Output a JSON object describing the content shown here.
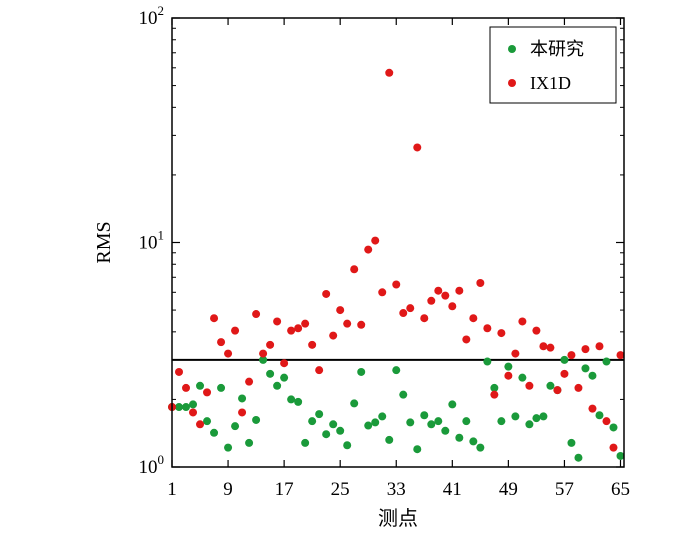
{
  "chart_data": {
    "type": "scatter",
    "xlabel": "测点",
    "ylabel": "RMS",
    "xlim": [
      1,
      65.5
    ],
    "ylim": [
      1,
      100
    ],
    "y_scale": "log",
    "x_ticks": [
      1,
      9,
      17,
      25,
      33,
      41,
      49,
      57,
      65
    ],
    "x_tick_labels": [
      "1",
      "9",
      "17",
      "25",
      "33",
      "41",
      "49",
      "57",
      "65"
    ],
    "y_ticks": [
      1,
      10,
      100
    ],
    "y_tick_labels": [
      {
        "base": "10",
        "exp": "0"
      },
      {
        "base": "10",
        "exp": "1"
      },
      {
        "base": "10",
        "exp": "2"
      }
    ],
    "legend_position": "top-right",
    "reference_line": {
      "y": 3.0,
      "color": "#000000"
    },
    "series": [
      {
        "name": "本研究",
        "color": "#1a9a3a",
        "x": [
          1,
          2,
          3,
          4,
          5,
          6,
          7,
          8,
          9,
          10,
          11,
          12,
          13,
          14,
          15,
          16,
          17,
          18,
          19,
          20,
          21,
          22,
          23,
          24,
          25,
          26,
          27,
          28,
          29,
          30,
          31,
          32,
          33,
          34,
          35,
          36,
          37,
          38,
          39,
          40,
          41,
          42,
          43,
          44,
          45,
          46,
          47,
          48,
          49,
          50,
          51,
          52,
          53,
          54,
          55,
          56,
          57,
          58,
          59,
          60,
          61,
          62,
          63,
          64,
          65
        ],
        "y": [
          1.85,
          1.85,
          1.85,
          1.9,
          2.3,
          1.6,
          1.42,
          2.25,
          1.22,
          1.52,
          2.02,
          1.28,
          1.62,
          3.0,
          2.6,
          2.3,
          2.5,
          2.0,
          1.95,
          1.28,
          1.6,
          1.72,
          1.4,
          1.55,
          1.45,
          1.25,
          1.92,
          2.65,
          1.53,
          1.58,
          1.68,
          1.32,
          2.7,
          2.1,
          1.58,
          1.2,
          1.7,
          1.55,
          1.6,
          1.45,
          1.9,
          1.35,
          1.6,
          1.3,
          1.22,
          2.95,
          2.25,
          1.6,
          2.8,
          1.68,
          2.5,
          1.55,
          1.65,
          1.68,
          2.3,
          2.2,
          3.0,
          1.28,
          1.1,
          2.75,
          2.55,
          1.7,
          2.95,
          1.5,
          1.12
        ]
      },
      {
        "name": "IX1D",
        "color": "#e01818",
        "x": [
          1,
          2,
          3,
          4,
          5,
          6,
          7,
          8,
          9,
          10,
          11,
          12,
          13,
          14,
          15,
          16,
          17,
          18,
          19,
          20,
          21,
          22,
          23,
          24,
          25,
          26,
          27,
          28,
          29,
          30,
          31,
          32,
          33,
          34,
          35,
          36,
          37,
          38,
          39,
          40,
          41,
          42,
          43,
          44,
          45,
          46,
          47,
          48,
          49,
          50,
          51,
          52,
          53,
          54,
          55,
          56,
          57,
          58,
          59,
          60,
          61,
          62,
          63,
          64,
          65
        ],
        "y": [
          1.85,
          2.65,
          2.25,
          1.75,
          1.55,
          2.15,
          4.6,
          3.6,
          3.2,
          4.05,
          1.75,
          2.4,
          4.8,
          3.2,
          3.5,
          4.45,
          2.9,
          4.05,
          4.15,
          4.35,
          3.5,
          2.7,
          5.9,
          3.85,
          5.0,
          4.35,
          7.6,
          4.3,
          9.3,
          10.2,
          6.0,
          57.0,
          6.5,
          4.85,
          5.1,
          26.5,
          4.6,
          5.5,
          6.1,
          5.8,
          5.2,
          6.1,
          3.7,
          4.6,
          6.6,
          4.15,
          2.1,
          3.95,
          2.55,
          3.2,
          4.45,
          2.3,
          4.05,
          3.45,
          3.4,
          2.2,
          2.6,
          3.15,
          2.25,
          3.35,
          1.82,
          3.45,
          1.6,
          1.22,
          3.15
        ]
      }
    ]
  }
}
